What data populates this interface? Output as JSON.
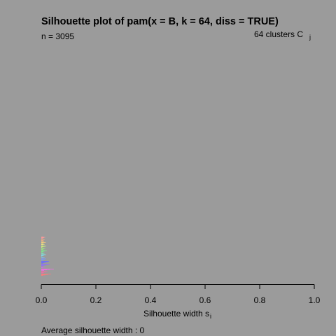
{
  "chart_data": {
    "type": "bar",
    "orientation": "horizontal",
    "title": "Silhouette plot of pam(x = B, k = 64, diss = TRUE)",
    "n_label": "n = 3095",
    "clusters_label": "64  clusters  C",
    "clusters_subscript": "j",
    "xlabel": "Silhouette width s",
    "xlabel_subscript": "i",
    "footer": "Average silhouette width :  0",
    "xlim": [
      0,
      1
    ],
    "ticks": [
      "0.0",
      "0.2",
      "0.4",
      "0.6",
      "0.8",
      "1.0"
    ],
    "tick_values": [
      0,
      0.2,
      0.4,
      0.6,
      0.8,
      1.0
    ],
    "n": 3095,
    "k": 64,
    "average_silhouette_width": 0,
    "background_color": "#9b9b9b",
    "clusters": [
      {
        "color": "#ff9a9a",
        "widths": [
          0.008,
          0.014,
          0.01,
          0.006,
          0.004
        ]
      },
      {
        "color": "#ffb37f",
        "widths": [
          0.012,
          0.008,
          0.004
        ]
      },
      {
        "color": "#ffd27a",
        "widths": [
          0.01,
          0.016,
          0.006
        ]
      },
      {
        "color": "#f4f07a",
        "widths": [
          0.009,
          0.012,
          0.005
        ]
      },
      {
        "color": "#cff47a",
        "widths": [
          0.018,
          0.012,
          0.006,
          0.003
        ]
      },
      {
        "color": "#9cf47a",
        "widths": [
          0.014,
          0.01,
          0.005
        ]
      },
      {
        "color": "#79f48c",
        "widths": [
          0.02,
          0.012,
          0.008,
          0.004
        ]
      },
      {
        "color": "#79f4bf",
        "widths": [
          0.012,
          0.008
        ]
      },
      {
        "color": "#79eaf4",
        "widths": [
          0.016,
          0.01,
          0.006,
          0.003
        ]
      },
      {
        "color": "#79c2f4",
        "widths": [
          0.012,
          0.007
        ]
      },
      {
        "color": "#7a9af4",
        "widths": [
          0.018,
          0.014,
          0.009,
          0.005
        ]
      },
      {
        "color": "#6b6bff",
        "widths": [
          0.028,
          0.022,
          0.016,
          0.01,
          0.006
        ]
      },
      {
        "color": "#8f6bff",
        "widths": [
          0.03,
          0.02,
          0.012,
          0.006
        ]
      },
      {
        "color": "#c46bf4",
        "widths": [
          0.014,
          0.008,
          0.004
        ]
      },
      {
        "color": "#f46be8",
        "widths": [
          0.046,
          0.032,
          0.02,
          0.01
        ]
      },
      {
        "color": "#f46ba8",
        "widths": [
          0.022,
          0.016,
          0.01,
          0.005
        ]
      },
      {
        "color": "#ff7a7a",
        "widths": [
          0.036,
          0.024,
          0.014,
          0.006
        ]
      }
    ]
  }
}
